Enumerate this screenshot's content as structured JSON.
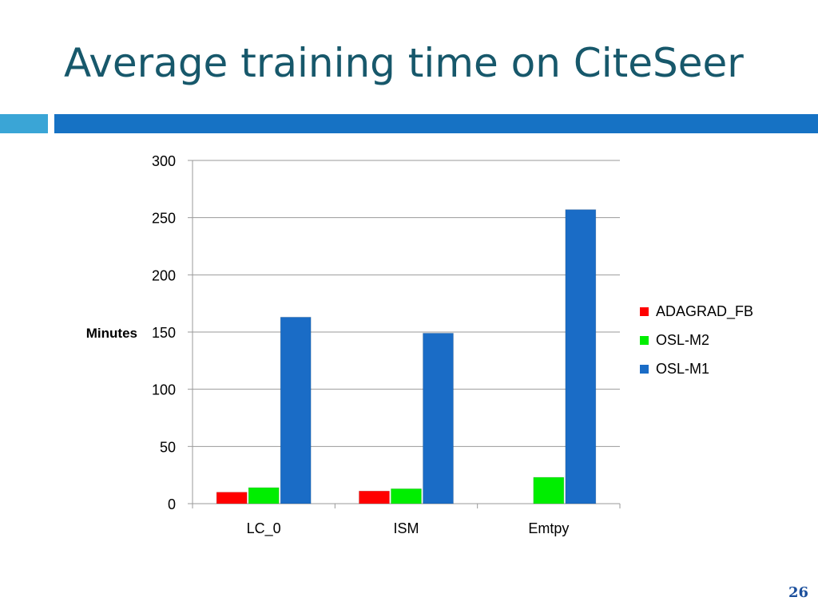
{
  "slide": {
    "title": "Average training time on CiteSeer",
    "page_number": "26"
  },
  "chart_data": {
    "type": "bar",
    "categories": [
      "LC_0",
      "ISM",
      "Emtpy"
    ],
    "series": [
      {
        "name": "ADAGRAD_FB",
        "values": [
          10,
          11,
          0
        ],
        "color": "#ff0000"
      },
      {
        "name": "OSL-M2",
        "values": [
          14,
          13,
          23
        ],
        "color": "#00ee00"
      },
      {
        "name": "OSL-M1",
        "values": [
          163,
          149,
          257
        ],
        "color": "#1a6cc6"
      }
    ],
    "ylabel": "Minutes",
    "ylim": [
      0,
      300
    ],
    "yticks": [
      0,
      50,
      100,
      150,
      200,
      250,
      300
    ],
    "grid": true,
    "legend": "right"
  }
}
